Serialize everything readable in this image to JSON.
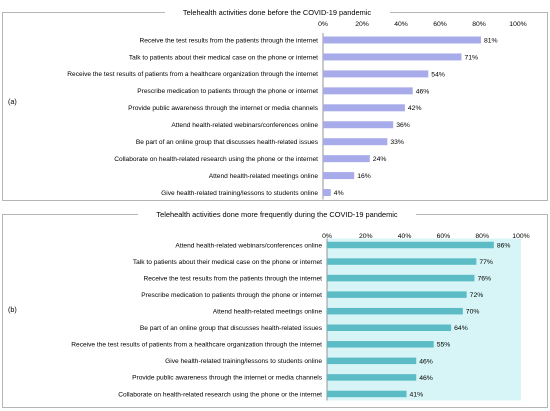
{
  "chart_data": [
    {
      "type": "bar",
      "orientation": "horizontal",
      "panel_label": "(a)",
      "title": "Telehealth activities done before the COVID-19 pandemic",
      "categories": [
        "Receive the test results from the patients through the internet",
        "Talk to patients about their medical case on the phone or internet",
        "Receive the test results of patients from a healthcare organization through the internet",
        "Prescribe medication to patients through the phone or internet",
        "Provide public awareness through the internet or media channels",
        "Attend health-related webinars/conferences online",
        "Be part of an online group that discusses health-related issues",
        "Collaborate on health-related research using the phone or the internet",
        "Attend health-related meetings online",
        "Give health-related training/lessons to students online"
      ],
      "values": [
        81,
        71,
        54,
        46,
        42,
        36,
        33,
        24,
        16,
        4
      ],
      "value_labels": [
        "81%",
        "71%",
        "54%",
        "46%",
        "42%",
        "36%",
        "33%",
        "24%",
        "16%",
        "4%"
      ],
      "xticks": [
        "0%",
        "20%",
        "40%",
        "60%",
        "80%",
        "100%"
      ],
      "xlim": [
        0,
        100
      ],
      "bar_color": "#a7abe9",
      "background_band": false,
      "grid": false
    },
    {
      "type": "bar",
      "orientation": "horizontal",
      "panel_label": "(b)",
      "title": "Telehealth activities done more frequently during the COVID-19 pandemic",
      "categories": [
        "Attend health-related webinars/conferences online",
        "Talk to patients about their medical case on the phone or internet",
        "Receive the test results from the patients through the internet",
        "Prescribe medication to patients through the phone or internet",
        "Attend health-related meetings online",
        "Be part of an online group that discusses health-related issues",
        "Receive the test results of patients from a healthcare organization through the internet",
        "Give health-related training/lessons to students online",
        "Provide public awareness through the internet or media channels",
        "Collaborate on health-related research using the phone or the internet"
      ],
      "values": [
        86,
        77,
        76,
        72,
        70,
        64,
        55,
        46,
        46,
        41
      ],
      "value_labels": [
        "86%",
        "77%",
        "76%",
        "72%",
        "70%",
        "64%",
        "55%",
        "46%",
        "46%",
        "41%"
      ],
      "xticks": [
        "0%",
        "20%",
        "40%",
        "60%",
        "80%",
        "100%"
      ],
      "xlim": [
        0,
        100
      ],
      "bar_color": "#5cbcc6",
      "band_color": "#d7f5f7",
      "background_band": true,
      "grid": false
    }
  ]
}
